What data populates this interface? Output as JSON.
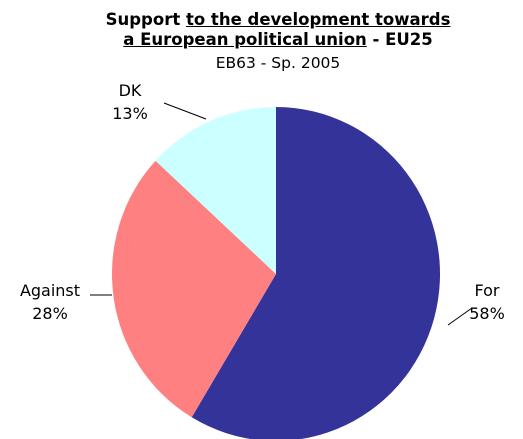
{
  "chart_data": {
    "type": "pie",
    "title_parts": {
      "line1_prefix": "Support ",
      "line1_underlined": "to the development towards",
      "line2_underlined": "a European political union",
      "line2_suffix": " - EU25"
    },
    "subtitle": "EB63 - Sp. 2005",
    "slices": [
      {
        "name": "For",
        "value": 58,
        "label_value": "58%",
        "color": "#333399"
      },
      {
        "name": "Against",
        "value": 28,
        "label_value": "28%",
        "color": "#ff8080"
      },
      {
        "name": "DK",
        "value": 13,
        "label_value": "13%",
        "color": "#ccffff"
      }
    ]
  }
}
